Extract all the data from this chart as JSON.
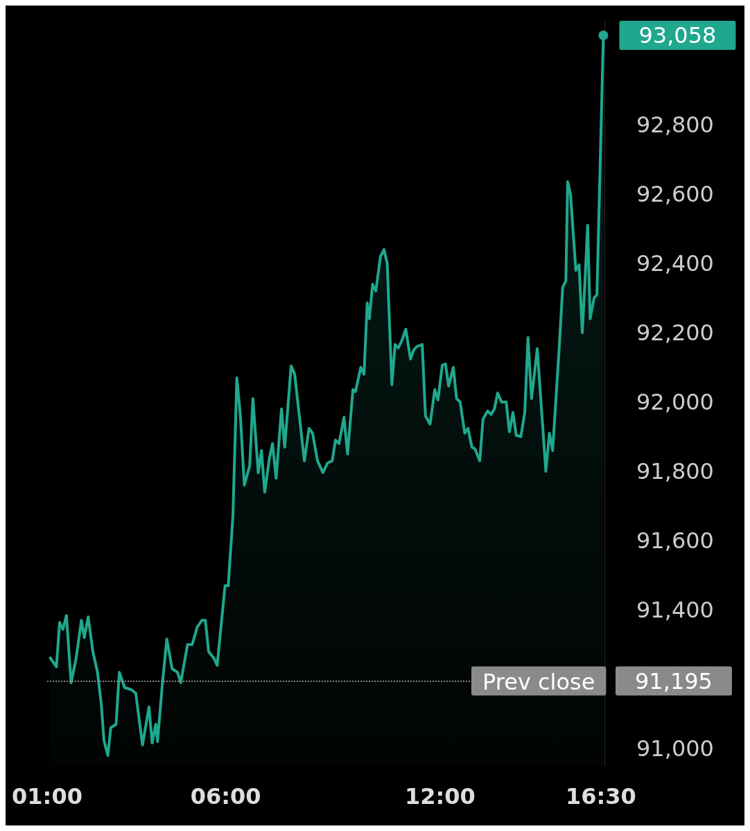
{
  "chart_data": {
    "type": "area",
    "x": [
      1.07,
      1.26,
      1.35,
      1.44,
      1.54,
      1.67,
      1.81,
      1.96,
      2.04,
      2.15,
      2.28,
      2.41,
      2.52,
      2.59,
      2.7,
      2.78,
      2.93,
      3.02,
      3.17,
      3.35,
      3.48,
      3.67,
      3.85,
      3.94,
      4.04,
      4.09,
      4.22,
      4.35,
      4.5,
      4.65,
      4.74,
      4.93,
      5.06,
      5.2,
      5.33,
      5.43,
      5.52,
      5.67,
      5.76,
      5.98,
      6.07,
      6.2,
      6.31,
      6.41,
      6.52,
      6.67,
      6.76,
      6.91,
      7.0,
      7.09,
      7.22,
      7.31,
      7.41,
      7.56,
      7.65,
      7.83,
      7.93,
      8.06,
      8.2,
      8.33,
      8.43,
      8.57,
      8.72,
      8.85,
      8.98,
      9.07,
      9.17,
      9.31,
      9.41,
      9.56,
      9.63,
      9.78,
      9.87,
      9.96,
      10.02,
      10.11,
      10.2,
      10.33,
      10.43,
      10.52,
      10.65,
      10.74,
      10.83,
      10.94,
      11.04,
      11.17,
      11.26,
      11.35,
      11.5,
      11.59,
      11.72,
      11.85,
      11.94,
      12.06,
      12.15,
      12.24,
      12.37,
      12.46,
      12.56,
      12.69,
      12.78,
      12.89,
      12.98,
      13.11,
      13.2,
      13.33,
      13.43,
      13.52,
      13.61,
      13.72,
      13.85,
      13.94,
      14.04,
      14.13,
      14.26,
      14.37,
      14.46,
      14.56,
      14.72,
      14.96,
      15.06,
      15.15,
      15.33,
      15.43,
      15.52,
      15.57,
      15.65,
      15.8,
      15.89,
      15.98,
      16.07,
      16.13,
      16.2,
      16.31,
      16.39,
      16.57
    ],
    "series": [
      {
        "color": "#1fa88e",
        "values": [
          91264,
          91236,
          91364,
          91344,
          91384,
          91190,
          91260,
          91370,
          91320,
          91380,
          91280,
          91220,
          91124,
          91024,
          90980,
          91060,
          91070,
          91220,
          91176,
          91170,
          91160,
          91010,
          91120,
          91016,
          91070,
          91020,
          91180,
          91316,
          91230,
          91220,
          91190,
          91300,
          91300,
          91350,
          91370,
          91370,
          91280,
          91260,
          91240,
          91470,
          91470,
          91670,
          92070,
          91960,
          91760,
          91816,
          92010,
          91796,
          91860,
          91740,
          91836,
          91880,
          91780,
          91980,
          91870,
          92104,
          92080,
          91960,
          91830,
          91924,
          91910,
          91830,
          91796,
          91824,
          91830,
          91890,
          91880,
          91956,
          91850,
          92036,
          92030,
          92100,
          92080,
          92286,
          92240,
          92340,
          92320,
          92420,
          92440,
          92400,
          92050,
          92166,
          92156,
          92180,
          92210,
          92124,
          92150,
          92160,
          92166,
          91960,
          91936,
          92036,
          92006,
          92106,
          92110,
          92046,
          92100,
          92010,
          92000,
          91910,
          91924,
          91870,
          91864,
          91830,
          91950,
          91974,
          91964,
          91980,
          92026,
          92000,
          92000,
          91914,
          91970,
          91904,
          91900,
          91970,
          92186,
          92010,
          92154,
          91800,
          91910,
          91860,
          92150,
          92330,
          92350,
          92636,
          92600,
          92380,
          92396,
          92200,
          92380,
          92510,
          92240,
          92300,
          92310,
          93058
        ]
      }
    ],
    "xlim": [
      1,
      16.6
    ],
    "xticks": [
      {
        "value": 1,
        "label": "01:00"
      },
      {
        "value": 6,
        "label": "06:00"
      },
      {
        "value": 12,
        "label": "12:00"
      },
      {
        "value": 16.5,
        "label": "16:30"
      }
    ],
    "ylim": [
      90950,
      93100
    ],
    "yticks": [
      {
        "value": 91000,
        "label": "91,000"
      },
      {
        "value": 91400,
        "label": "91,400"
      },
      {
        "value": 91600,
        "label": "91,600"
      },
      {
        "value": 91800,
        "label": "91,800"
      },
      {
        "value": 92000,
        "label": "92,000"
      },
      {
        "value": 92200,
        "label": "92,200"
      },
      {
        "value": 92400,
        "label": "92,400"
      },
      {
        "value": 92600,
        "label": "92,600"
      },
      {
        "value": 92800,
        "label": "92,800"
      }
    ],
    "ref_lines": [
      {
        "axis": "y",
        "value": 91195,
        "label": "Prev close",
        "color": "#8a8a8a",
        "line_style": "dotted"
      }
    ],
    "annotations": [
      {
        "text": "93,058",
        "x": 16.57,
        "y": 93058
      },
      "91,195"
    ],
    "grid": false,
    "marker": "none"
  }
}
